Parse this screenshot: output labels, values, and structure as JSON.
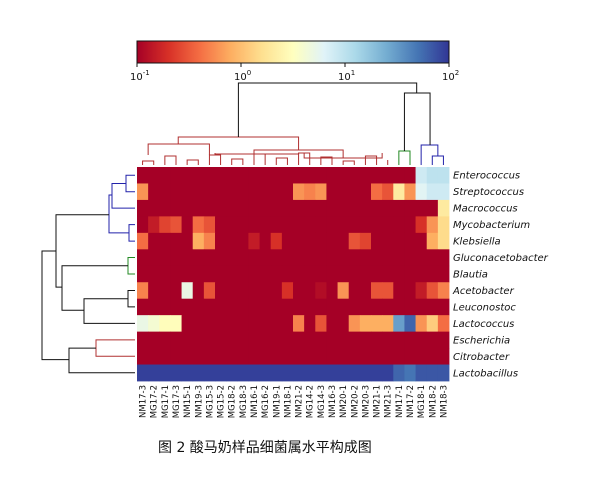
{
  "chart_data": {
    "type": "heatmap",
    "title": "",
    "caption": "图 2   酸马奶样品细菌属水平构成图",
    "colorbar": {
      "scale": "log",
      "range": [
        0.1,
        100
      ],
      "ticks": [
        {
          "base": "10",
          "exp": "-1",
          "value": 0.1
        },
        {
          "base": "10",
          "exp": "0",
          "value": 1
        },
        {
          "base": "10",
          "exp": "1",
          "value": 10
        },
        {
          "base": "10",
          "exp": "2",
          "value": 100
        }
      ],
      "colors": [
        "#a50026",
        "#d73027",
        "#f46d43",
        "#fdae61",
        "#fee090",
        "#ffffbf",
        "#e0f3f8",
        "#abd9e9",
        "#74add1",
        "#4575b4",
        "#313695"
      ]
    },
    "columns": [
      "NM17-3",
      "MG17-2",
      "MG17-1",
      "MG17-3",
      "NM15-1",
      "NM19-3",
      "MG15-3",
      "MG15-2",
      "MG18-2",
      "MG18-3",
      "NM16-1",
      "MG16-2",
      "NM19-1",
      "NM18-1",
      "NM21-2",
      "MG14-2",
      "MG14-3",
      "NM16-3",
      "NM20-1",
      "NM20-2",
      "NM20-3",
      "NM21-1",
      "NM21-3",
      "NM17-1",
      "NM17-2",
      "MG18-1",
      "NM18-2",
      "NM18-3"
    ],
    "rows": [
      "Enterococcus",
      "Streptococcus",
      "Macrococcus",
      "Mycobacterium",
      "Klebsiella",
      "Gluconacetobacter",
      "Blautia",
      "Acetobacter",
      "Leuconostoc",
      "Lactococcus",
      "Escherichia",
      "Citrobacter",
      "Lactobacillus"
    ],
    "values": [
      [
        0.1,
        0.1,
        0.1,
        0.1,
        0.1,
        0.1,
        0.1,
        0.1,
        0.1,
        0.1,
        0.1,
        0.1,
        0.1,
        0.1,
        0.1,
        0.1,
        0.1,
        0.1,
        0.1,
        0.1,
        0.1,
        0.1,
        0.1,
        0.1,
        0.1,
        8,
        10,
        10
      ],
      [
        0.6,
        0.1,
        0.1,
        0.1,
        0.1,
        0.1,
        0.1,
        0.1,
        0.1,
        0.1,
        0.1,
        0.1,
        0.1,
        0.1,
        0.6,
        0.5,
        0.6,
        0.1,
        0.1,
        0.1,
        0.1,
        0.4,
        0.3,
        2,
        0.6,
        6,
        8,
        8
      ],
      [
        0.1,
        0.1,
        0.1,
        0.1,
        0.1,
        0.1,
        0.1,
        0.1,
        0.1,
        0.1,
        0.1,
        0.1,
        0.1,
        0.1,
        0.1,
        0.1,
        0.1,
        0.1,
        0.1,
        0.1,
        0.1,
        0.1,
        0.1,
        0.1,
        0.1,
        0.1,
        0.1,
        2
      ],
      [
        0.1,
        0.15,
        0.25,
        0.3,
        0.1,
        0.4,
        0.3,
        0.1,
        0.1,
        0.1,
        0.1,
        0.1,
        0.1,
        0.1,
        0.1,
        0.1,
        0.1,
        0.1,
        0.1,
        0.1,
        0.1,
        0.1,
        0.1,
        0.1,
        0.1,
        0.2,
        0.6,
        1.5
      ],
      [
        0.4,
        0.1,
        0.1,
        0.1,
        0.1,
        0.8,
        0.5,
        0.1,
        0.1,
        0.1,
        0.15,
        0.1,
        0.2,
        0.1,
        0.1,
        0.1,
        0.1,
        0.1,
        0.1,
        0.3,
        0.25,
        0.1,
        0.1,
        0.1,
        0.1,
        0.1,
        0.8,
        1.5
      ],
      [
        0.1,
        0.1,
        0.1,
        0.1,
        0.1,
        0.1,
        0.1,
        0.1,
        0.1,
        0.1,
        0.1,
        0.1,
        0.1,
        0.1,
        0.1,
        0.1,
        0.1,
        0.1,
        0.1,
        0.1,
        0.1,
        0.1,
        0.1,
        0.1,
        0.1,
        0.1,
        0.1,
        0.1
      ],
      [
        0.1,
        0.1,
        0.1,
        0.1,
        0.1,
        0.1,
        0.1,
        0.1,
        0.1,
        0.1,
        0.1,
        0.1,
        0.1,
        0.1,
        0.1,
        0.1,
        0.1,
        0.1,
        0.1,
        0.1,
        0.1,
        0.1,
        0.1,
        0.1,
        0.1,
        0.1,
        0.1,
        0.1
      ],
      [
        0.5,
        0.1,
        0.1,
        0.1,
        5,
        0.1,
        0.3,
        0.1,
        0.1,
        0.1,
        0.1,
        0.1,
        0.1,
        0.2,
        0.1,
        0.1,
        0.12,
        0.1,
        0.6,
        0.1,
        0.1,
        0.3,
        0.3,
        0.1,
        0.1,
        0.15,
        0.3,
        0.5
      ],
      [
        0.1,
        0.1,
        0.1,
        0.1,
        0.1,
        0.1,
        0.1,
        0.1,
        0.1,
        0.1,
        0.1,
        0.1,
        0.1,
        0.1,
        0.1,
        0.1,
        0.1,
        0.1,
        0.1,
        0.1,
        0.1,
        0.1,
        0.1,
        0.1,
        0.1,
        0.1,
        0.1,
        0.1
      ],
      [
        5,
        4,
        3,
        3,
        0.1,
        0.1,
        0.1,
        0.1,
        0.1,
        0.1,
        0.1,
        0.1,
        0.1,
        0.1,
        0.5,
        0.1,
        0.3,
        0.1,
        0.1,
        0.6,
        0.8,
        0.8,
        0.8,
        30,
        60,
        0.6,
        1.2,
        0.4
      ],
      [
        0.1,
        0.1,
        0.1,
        0.1,
        0.1,
        0.1,
        0.1,
        0.1,
        0.1,
        0.1,
        0.1,
        0.1,
        0.1,
        0.1,
        0.1,
        0.1,
        0.1,
        0.1,
        0.1,
        0.1,
        0.1,
        0.1,
        0.1,
        0.1,
        0.1,
        0.1,
        0.1,
        0.1
      ],
      [
        0.1,
        0.1,
        0.1,
        0.1,
        0.1,
        0.1,
        0.1,
        0.1,
        0.1,
        0.1,
        0.1,
        0.1,
        0.1,
        0.1,
        0.1,
        0.1,
        0.1,
        0.1,
        0.1,
        0.1,
        0.1,
        0.1,
        0.1,
        0.1,
        0.1,
        0.1,
        0.1,
        0.1
      ],
      [
        90,
        90,
        90,
        90,
        90,
        90,
        90,
        90,
        90,
        90,
        90,
        90,
        90,
        90,
        90,
        90,
        90,
        90,
        90,
        90,
        90,
        90,
        90,
        60,
        50,
        70,
        70,
        70
      ]
    ],
    "row_dendrogram": {
      "clusters": [
        {
          "members": [
            0,
            4
          ],
          "color": "#2222aa"
        },
        {
          "members": [
            5,
            6
          ],
          "color": "#228822"
        },
        {
          "members": [
            10,
            11
          ],
          "color": "#b03030"
        },
        {
          "members": [
            7,
            12
          ],
          "color": "#111111"
        }
      ]
    },
    "column_dendrogram": {
      "clusters": [
        {
          "members": [
            0,
            22
          ],
          "color": "#b03030"
        },
        {
          "members": [
            23,
            24
          ],
          "color": "#228822"
        },
        {
          "members": [
            25,
            27
          ],
          "color": "#2222aa"
        }
      ]
    }
  }
}
